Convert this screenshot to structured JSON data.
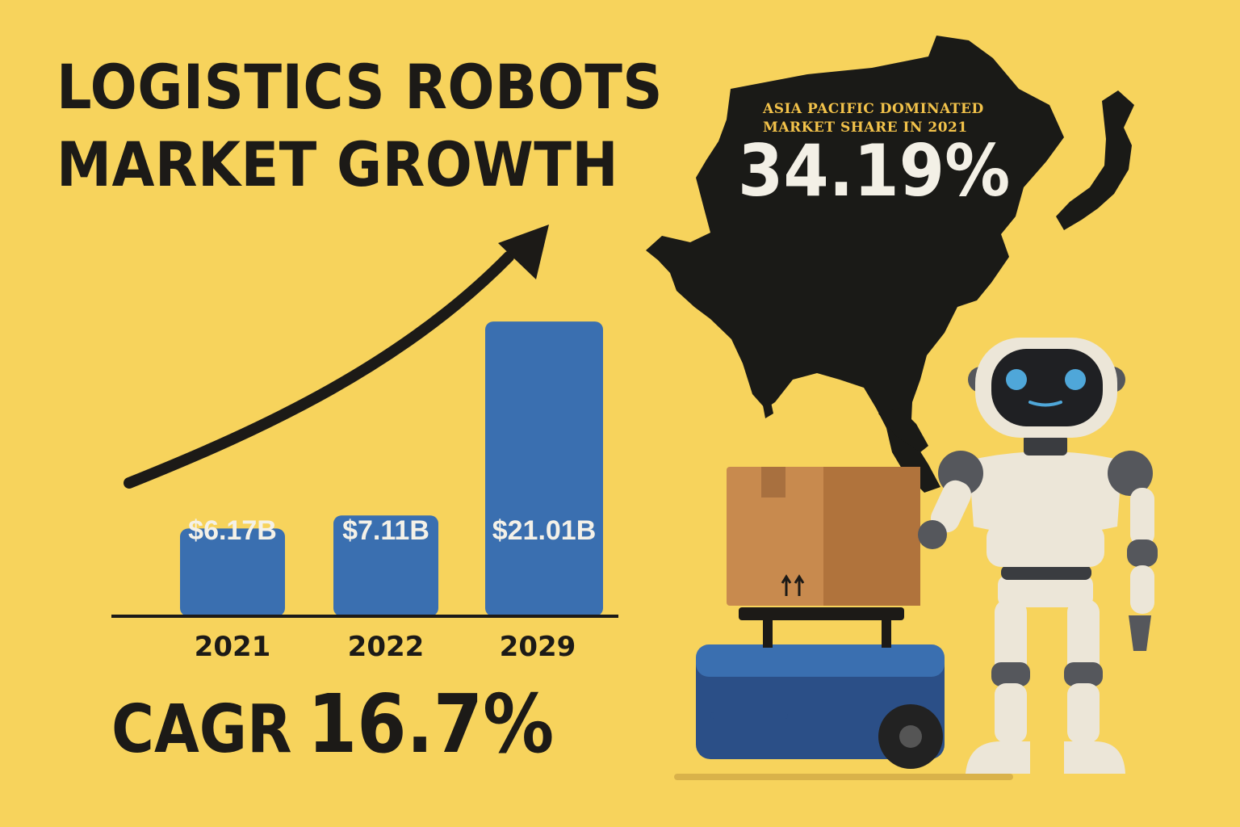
{
  "title": {
    "line1": "LOGISTICS ROBOTS",
    "line2": "MARKET GROWTH"
  },
  "chart_data": {
    "type": "bar",
    "categories": [
      "2021",
      "2022",
      "2029"
    ],
    "values": [
      6.17,
      7.11,
      21.01
    ],
    "data_labels": [
      "$6.17B",
      "$7.11B",
      "$21.01B"
    ],
    "title": "LOGISTICS ROBOTS MARKET GROWTH",
    "xlabel": "",
    "ylabel": "",
    "ylim": [
      0,
      22
    ],
    "grid": false,
    "legend": "none",
    "bar_color": "#3a6fb0",
    "trend_arrow": "up"
  },
  "cagr": {
    "label": "CAGR",
    "value": "16.7%"
  },
  "region": {
    "label_line1": "ASIA PACIFIC DOMINATED",
    "label_line2": "MARKET SHARE IN 2021",
    "share": "34.19%"
  },
  "illustration": {
    "icons": [
      "asia-pacific-map-icon",
      "robot-icon",
      "cardboard-box-icon",
      "delivery-cart-icon"
    ]
  },
  "colors": {
    "background": "#f7d35c",
    "text": "#1c1a17",
    "bar": "#3a6fb0",
    "map": "#1a1a17",
    "accent_label": "#f2c24a"
  }
}
